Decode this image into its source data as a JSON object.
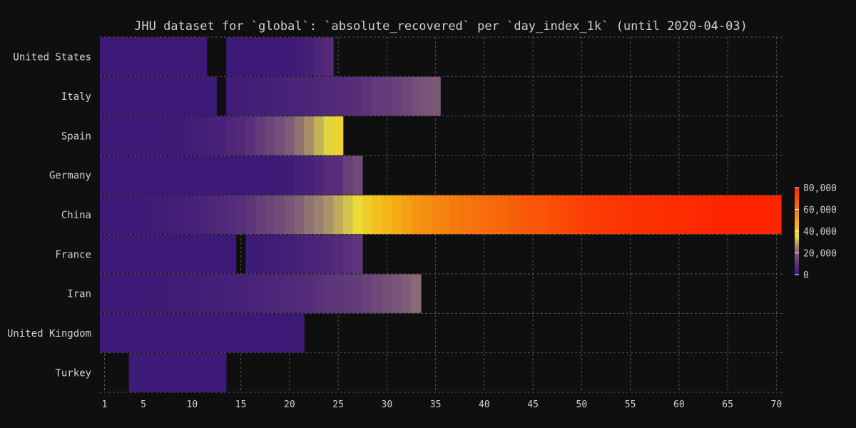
{
  "chart_data": {
    "type": "heatmap",
    "title": "JHU dataset for `global`: `absolute_recovered` per `day_index_1k` (until 2020-04-03)",
    "xlabel": "",
    "ylabel": "",
    "x_ticks": [
      1,
      5,
      10,
      15,
      20,
      25,
      30,
      35,
      40,
      45,
      50,
      55,
      60,
      65,
      70
    ],
    "xlim": [
      0.5,
      70.5
    ],
    "grid": true,
    "colorscale": "plasma-like (purple → brown → yellow → orange → red)",
    "colorbar": {
      "ticks": [
        "0",
        "20,000",
        "40,000",
        "60,000",
        "80,000"
      ],
      "min": 0,
      "max": 80000,
      "placement": "right"
    },
    "rows": [
      {
        "name": "United States",
        "segments": [
          {
            "x_start": 1,
            "values": [
              0,
              0,
              0,
              0,
              0,
              0,
              0,
              0,
              0,
              0,
              0
            ]
          },
          {
            "x_start": 14,
            "values": [
              0,
              0,
              0,
              0,
              0,
              100,
              300,
              1100,
              2600,
              5300,
              7200
            ]
          }
        ]
      },
      {
        "name": "Italy",
        "segments": [
          {
            "x_start": 1,
            "values": [
              0,
              0,
              0,
              0,
              0,
              0,
              0,
              0,
              0,
              0,
              0,
              0
            ]
          },
          {
            "x_start": 14,
            "values": [
              1000,
              1300,
              1600,
              2300,
              2700,
              3100,
              4000,
              4400,
              5100,
              6100,
              7000,
              7400,
              8300,
              9400,
              10400,
              11800,
              12400,
              13600,
              15000,
              16800,
              17900,
              18800
            ]
          }
        ]
      },
      {
        "name": "Spain",
        "segments": [
          {
            "x_start": 1,
            "values": [
              0,
              0,
              0,
              0,
              0,
              100,
              200,
              500,
              1100,
              1600,
              2100,
              3400,
              3800,
              5400,
              7000,
              9400,
              12300,
              14700,
              16800,
              19300,
              22600,
              26700,
              30500,
              34200,
              38100
            ]
          }
        ]
      },
      {
        "name": "Germany",
        "segments": [
          {
            "x_start": 1,
            "values": [
              0,
              0,
              0,
              0,
              0,
              0,
              0,
              0,
              0,
              0,
              0,
              0,
              0,
              0,
              0,
              0,
              100,
              200,
              500,
              1000,
              2800,
              3200,
              5700,
              8500,
              9100,
              13500,
              16100
            ]
          }
        ]
      },
      {
        "name": "China",
        "segments": [
          {
            "x_start": 1,
            "values": [
              28,
              50,
              100,
              200,
              400,
              700,
              1200,
              1800,
              2500,
              3300,
              4200,
              5200,
              6200,
              7700,
              9300,
              11100,
              13000,
              14500,
              16100,
              18000,
              20200,
              22700,
              24700,
              27300,
              29700,
              32500,
              36100,
              39300,
              42100,
              44900,
              47400,
              49900,
              52000,
              53900,
              55500,
              57200,
              58600,
              59900,
              61000,
              62000,
              63000,
              64100,
              65400,
              66900,
              67700,
              68700,
              69600,
              70400,
              71700,
              72800,
              73800,
              74600,
              75200,
              75900,
              76200,
              76600,
              77000,
              77400,
              77700,
              78000,
              78500,
              78900,
              79300,
              79700,
              80100,
              80500,
              80800,
              81100,
              81300,
              81500
            ]
          }
        ]
      },
      {
        "name": "France",
        "segments": [
          {
            "x_start": 1,
            "values": [
              0,
              0,
              0,
              0
            ]
          },
          {
            "x_start": 5,
            "values": [
              0,
              0,
              0,
              0,
              0,
              0,
              0,
              0,
              0,
              0
            ]
          },
          {
            "x_start": 16,
            "values": [
              400,
              600,
              1000,
              1600,
              2200,
              3300,
              3900,
              4900,
              5700,
              7200,
              9400,
              11100
            ]
          }
        ]
      },
      {
        "name": "Iran",
        "segments": [
          {
            "x_start": 1,
            "values": [
              50,
              100,
              200,
              300,
              400,
              500,
              600,
              700,
              900,
              1200,
              1700,
              2100,
              2600,
              3000,
              3500,
              4000,
              4600,
              5400,
              6000,
              6700,
              7400,
              8400,
              9600,
              10500,
              11100,
              11900,
              12400,
              13900,
              15500,
              16700,
              17900,
              19700,
              21500
            ]
          }
        ]
      },
      {
        "name": "United Kingdom",
        "segments": [
          {
            "x_start": 1,
            "values": [
              0,
              0,
              0,
              0,
              0,
              0,
              0,
              0,
              0,
              0,
              0,
              0,
              0,
              0,
              0,
              0,
              0,
              0,
              0,
              0,
              0
            ]
          }
        ]
      },
      {
        "name": "Turkey",
        "segments": [
          {
            "x_start": 4,
            "values": [
              0,
              0,
              0,
              0,
              0,
              0,
              0,
              0,
              0,
              0
            ]
          }
        ]
      }
    ]
  }
}
